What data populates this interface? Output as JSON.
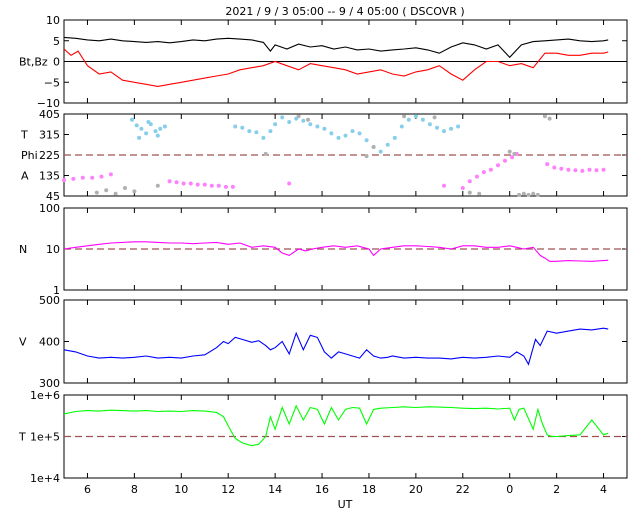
{
  "title": "2021 /  9 /  3   05:00 --  9 /  4   05:00 ( DSCOVR )",
  "xlabel": "UT",
  "x_tick_labels": [
    "6",
    "8",
    "10",
    "12",
    "14",
    "16",
    "18",
    "20",
    "22",
    "0",
    "2",
    "4"
  ],
  "x_tick_hours": [
    6,
    8,
    10,
    12,
    14,
    16,
    18,
    20,
    22,
    24,
    26,
    28
  ],
  "x_range_hours": [
    5,
    29
  ],
  "colors": {
    "bt": "#000000",
    "bz": "#ff0000",
    "theta": "#87ceeb",
    "phi": "#ff80ff",
    "phi_gray": "#b0b0b0",
    "density": "#ff00ff",
    "speed": "#0000ff",
    "temperature": "#00ff00",
    "reference_line": "#a05050"
  },
  "chart_data": [
    {
      "type": "line",
      "panel": "magnetic_field",
      "ylabel": "Bt,Bz",
      "ylim": [
        -10,
        10
      ],
      "y_ticks": [
        "10",
        "5",
        "0",
        "−5",
        "−10"
      ],
      "y_tick_values": [
        10,
        5,
        0,
        -5,
        -10
      ],
      "reference_line": 0,
      "series": [
        {
          "key": "bt",
          "x": [
            5,
            5.5,
            6,
            6.5,
            7,
            7.5,
            8,
            8.5,
            9,
            9.5,
            10,
            10.5,
            11,
            11.5,
            12,
            12.5,
            13,
            13.5,
            13.8,
            14,
            14.5,
            15,
            15.5,
            16,
            16.5,
            17,
            17.5,
            18,
            18.5,
            19,
            19.5,
            20,
            20.5,
            21,
            21.5,
            22,
            22.5,
            23,
            23.5,
            24,
            24.5,
            25,
            25.5,
            26,
            26.5,
            27,
            27.5,
            28,
            28.2
          ],
          "values": [
            5.8,
            5.6,
            5.2,
            5,
            5.4,
            5,
            4.8,
            4.6,
            4.8,
            4.5,
            4.8,
            5.2,
            5,
            5.4,
            5.6,
            5.4,
            5.2,
            4.6,
            2.5,
            4,
            3,
            4.2,
            3.5,
            3.8,
            3,
            3.5,
            2.8,
            3,
            2.5,
            2.8,
            3,
            3.3,
            2.8,
            2,
            3.5,
            4.5,
            4,
            3,
            4,
            1,
            4,
            4.8,
            5,
            5.2,
            5.4,
            5,
            4.8,
            5,
            5.2
          ]
        },
        {
          "key": "bz",
          "x": [
            5,
            5.3,
            5.6,
            6,
            6.5,
            7,
            7.5,
            8,
            8.5,
            9,
            9.5,
            10,
            10.5,
            11,
            11.5,
            12,
            12.5,
            13,
            13.5,
            14,
            14.5,
            15,
            15.5,
            16,
            16.5,
            17,
            17.5,
            18,
            18.5,
            19,
            19.5,
            20,
            20.5,
            21,
            21.5,
            22,
            22.5,
            23,
            23.5,
            24,
            24.5,
            25,
            25.5,
            26,
            26.5,
            27,
            27.5,
            28,
            28.2
          ],
          "values": [
            3,
            1.5,
            2.5,
            -1,
            -3,
            -2.5,
            -4.5,
            -5,
            -5.5,
            -6,
            -5.5,
            -5,
            -4.5,
            -4,
            -3.5,
            -3,
            -2,
            -1.5,
            -1,
            0,
            -1,
            -2,
            -0.5,
            -1,
            -1.5,
            -2,
            -3,
            -2.5,
            -2,
            -3,
            -3.5,
            -2.5,
            -2,
            -1,
            -3,
            -4.5,
            -2,
            0,
            0,
            -1,
            -0.5,
            -1.5,
            2,
            2,
            1.5,
            1.5,
            2,
            2,
            2.3
          ]
        }
      ]
    },
    {
      "type": "scatter",
      "panel": "direction",
      "ylabel_lines": [
        "T",
        "Phi",
        "A"
      ],
      "ylim": [
        45,
        405
      ],
      "y_ticks": [
        "405",
        "315",
        "225",
        "135",
        "45"
      ],
      "y_tick_values": [
        405,
        315,
        225,
        135,
        45
      ],
      "reference_line": 225,
      "series": [
        {
          "key": "theta",
          "x": [
            7.9,
            8.1,
            8.3,
            8.5,
            8.7,
            8.9,
            9.1,
            9.3,
            8.2,
            8.6,
            9.0,
            12.3,
            12.6,
            12.9,
            13.2,
            13.5,
            13.8,
            14.0,
            14.3,
            14.6,
            14.9,
            15.2,
            15.5,
            15.8,
            16.1,
            16.4,
            16.7,
            17.0,
            17.3,
            17.6,
            17.9,
            18.2,
            18.5,
            18.8,
            19.1,
            19.4,
            19.7,
            20.0,
            20.3,
            20.6,
            20.9,
            21.2,
            21.5,
            21.8
          ],
          "values": [
            380,
            355,
            340,
            320,
            360,
            330,
            340,
            350,
            300,
            370,
            310,
            350,
            345,
            330,
            325,
            300,
            330,
            360,
            390,
            370,
            385,
            375,
            360,
            350,
            340,
            320,
            300,
            310,
            330,
            320,
            290,
            260,
            240,
            270,
            300,
            350,
            380,
            395,
            380,
            360,
            345,
            330,
            340,
            350
          ]
        },
        {
          "key": "phi",
          "x": [
            5.0,
            5.4,
            5.8,
            6.2,
            6.6,
            7.0,
            9.5,
            9.8,
            10.1,
            10.4,
            10.7,
            11.0,
            11.3,
            11.6,
            11.9,
            12.2,
            14.6,
            21.2,
            22.0,
            22.3,
            22.6,
            22.9,
            23.2,
            23.5,
            23.8,
            24.1,
            24.3,
            25.6,
            25.9,
            26.2,
            26.5,
            26.8,
            27.1,
            27.4,
            27.7,
            28.0
          ],
          "values": [
            115,
            120,
            125,
            125,
            130,
            140,
            110,
            105,
            100,
            100,
            95,
            95,
            90,
            90,
            85,
            85,
            100,
            90,
            80,
            110,
            130,
            150,
            160,
            180,
            200,
            215,
            230,
            185,
            170,
            165,
            160,
            158,
            155,
            160,
            158,
            160
          ]
        },
        {
          "key": "phi_gray",
          "x": [
            6.4,
            6.8,
            7.2,
            7.6,
            8.0,
            9.0,
            13.6,
            15.0,
            15.4,
            17.9,
            18.2,
            19.5,
            20.8,
            22.3,
            22.7,
            24.0,
            24.2,
            24.4,
            24.6,
            24.8,
            25.0,
            25.2,
            25.5,
            25.7
          ],
          "values": [
            60,
            70,
            55,
            80,
            65,
            90,
            230,
            395,
            380,
            220,
            260,
            395,
            390,
            60,
            55,
            240,
            230,
            50,
            55,
            50,
            55,
            50,
            395,
            385
          ]
        }
      ]
    },
    {
      "type": "line",
      "panel": "density",
      "ylabel": "N",
      "yscale": "log",
      "ylim": [
        1,
        100
      ],
      "y_ticks": [
        "100",
        "10",
        "1"
      ],
      "y_tick_values": [
        100,
        10,
        1
      ],
      "reference_line": 10,
      "series": [
        {
          "key": "density",
          "x": [
            5,
            5.5,
            6,
            6.5,
            7,
            7.5,
            8,
            8.5,
            9,
            9.5,
            10,
            10.5,
            11,
            11.5,
            12,
            12.5,
            13,
            13.5,
            14,
            14.3,
            14.6,
            15,
            15.3,
            15.6,
            16,
            16.5,
            17,
            17.5,
            18,
            18.2,
            18.5,
            19,
            19.5,
            20,
            20.5,
            21,
            21.5,
            22,
            22.5,
            23,
            23.5,
            24,
            24.3,
            24.6,
            25,
            25.3,
            25.5,
            25.7,
            26,
            26.5,
            27,
            27.5,
            28,
            28.2
          ],
          "values": [
            10,
            11,
            12,
            13,
            14,
            14.5,
            15,
            15,
            14.5,
            14,
            14,
            13.5,
            14,
            14.5,
            13,
            14,
            11,
            12,
            11,
            8,
            7,
            10,
            9,
            10,
            11,
            12,
            11,
            12,
            10,
            7,
            10,
            11,
            12,
            12,
            11.5,
            11,
            10,
            12,
            12,
            11,
            11,
            12,
            11,
            10,
            11,
            7,
            6,
            5,
            5,
            5.2,
            5.1,
            5,
            5.2,
            5.3
          ]
        }
      ]
    },
    {
      "type": "line",
      "panel": "speed",
      "ylabel": "V",
      "ylim": [
        300,
        500
      ],
      "y_ticks": [
        "500",
        "400",
        "300"
      ],
      "y_tick_values": [
        500,
        400,
        300
      ],
      "series": [
        {
          "key": "speed",
          "x": [
            5,
            5.5,
            6,
            6.5,
            7,
            7.5,
            8,
            8.5,
            9,
            9.5,
            10,
            10.5,
            11,
            11.5,
            11.8,
            12,
            12.3,
            12.6,
            13,
            13.3,
            13.6,
            13.8,
            14,
            14.3,
            14.6,
            14.9,
            15.2,
            15.5,
            15.8,
            16.1,
            16.4,
            16.7,
            17,
            17.3,
            17.6,
            17.9,
            18.2,
            18.5,
            18.8,
            19,
            19.5,
            20,
            20.5,
            21,
            21.5,
            22,
            22.5,
            23,
            23.5,
            24,
            24.3,
            24.6,
            24.8,
            25.1,
            25.3,
            25.6,
            26,
            26.5,
            27,
            27.5,
            28,
            28.2
          ],
          "values": [
            380,
            375,
            365,
            360,
            362,
            360,
            362,
            365,
            360,
            362,
            360,
            365,
            368,
            385,
            400,
            395,
            410,
            405,
            398,
            402,
            390,
            380,
            385,
            400,
            370,
            420,
            380,
            415,
            410,
            375,
            360,
            375,
            370,
            365,
            360,
            380,
            365,
            360,
            362,
            365,
            360,
            362,
            360,
            360,
            358,
            362,
            360,
            362,
            365,
            362,
            375,
            365,
            345,
            405,
            390,
            425,
            420,
            425,
            430,
            428,
            432,
            430
          ]
        }
      ]
    },
    {
      "type": "line",
      "panel": "temperature",
      "ylabel": "T",
      "yscale": "log",
      "ylim": [
        10000,
        1000000
      ],
      "y_ticks": [
        "1e+6",
        "1e+5",
        "1e+4"
      ],
      "y_tick_values": [
        1000000,
        100000,
        10000
      ],
      "reference_line": 100000,
      "series": [
        {
          "key": "temperature",
          "x": [
            5,
            5.5,
            6,
            6.5,
            7,
            7.5,
            8,
            8.5,
            9,
            9.5,
            10,
            10.5,
            11,
            11.5,
            11.8,
            12,
            12.3,
            12.6,
            13,
            13.3,
            13.6,
            13.8,
            14,
            14.3,
            14.6,
            14.9,
            15.2,
            15.5,
            15.8,
            16.1,
            16.4,
            16.7,
            17,
            17.3,
            17.6,
            17.9,
            18.2,
            18.5,
            19,
            19.5,
            20,
            20.5,
            21,
            21.5,
            22,
            22.5,
            23,
            23.5,
            24,
            24.2,
            24.4,
            24.6,
            25,
            25.2,
            25.4,
            25.6,
            25.8,
            26,
            26.5,
            27,
            27.5,
            28,
            28.2
          ],
          "values": [
            350000,
            400000,
            420000,
            410000,
            430000,
            420000,
            410000,
            420000,
            400000,
            410000,
            400000,
            420000,
            410000,
            380000,
            300000,
            180000,
            90000,
            70000,
            60000,
            65000,
            100000,
            300000,
            150000,
            500000,
            200000,
            550000,
            250000,
            500000,
            450000,
            200000,
            500000,
            250000,
            450000,
            500000,
            480000,
            200000,
            450000,
            480000,
            500000,
            520000,
            500000,
            520000,
            510000,
            500000,
            480000,
            470000,
            480000,
            460000,
            480000,
            250000,
            450000,
            480000,
            150000,
            450000,
            200000,
            110000,
            100000,
            100000,
            105000,
            110000,
            250000,
            110000,
            120000
          ]
        }
      ]
    }
  ]
}
